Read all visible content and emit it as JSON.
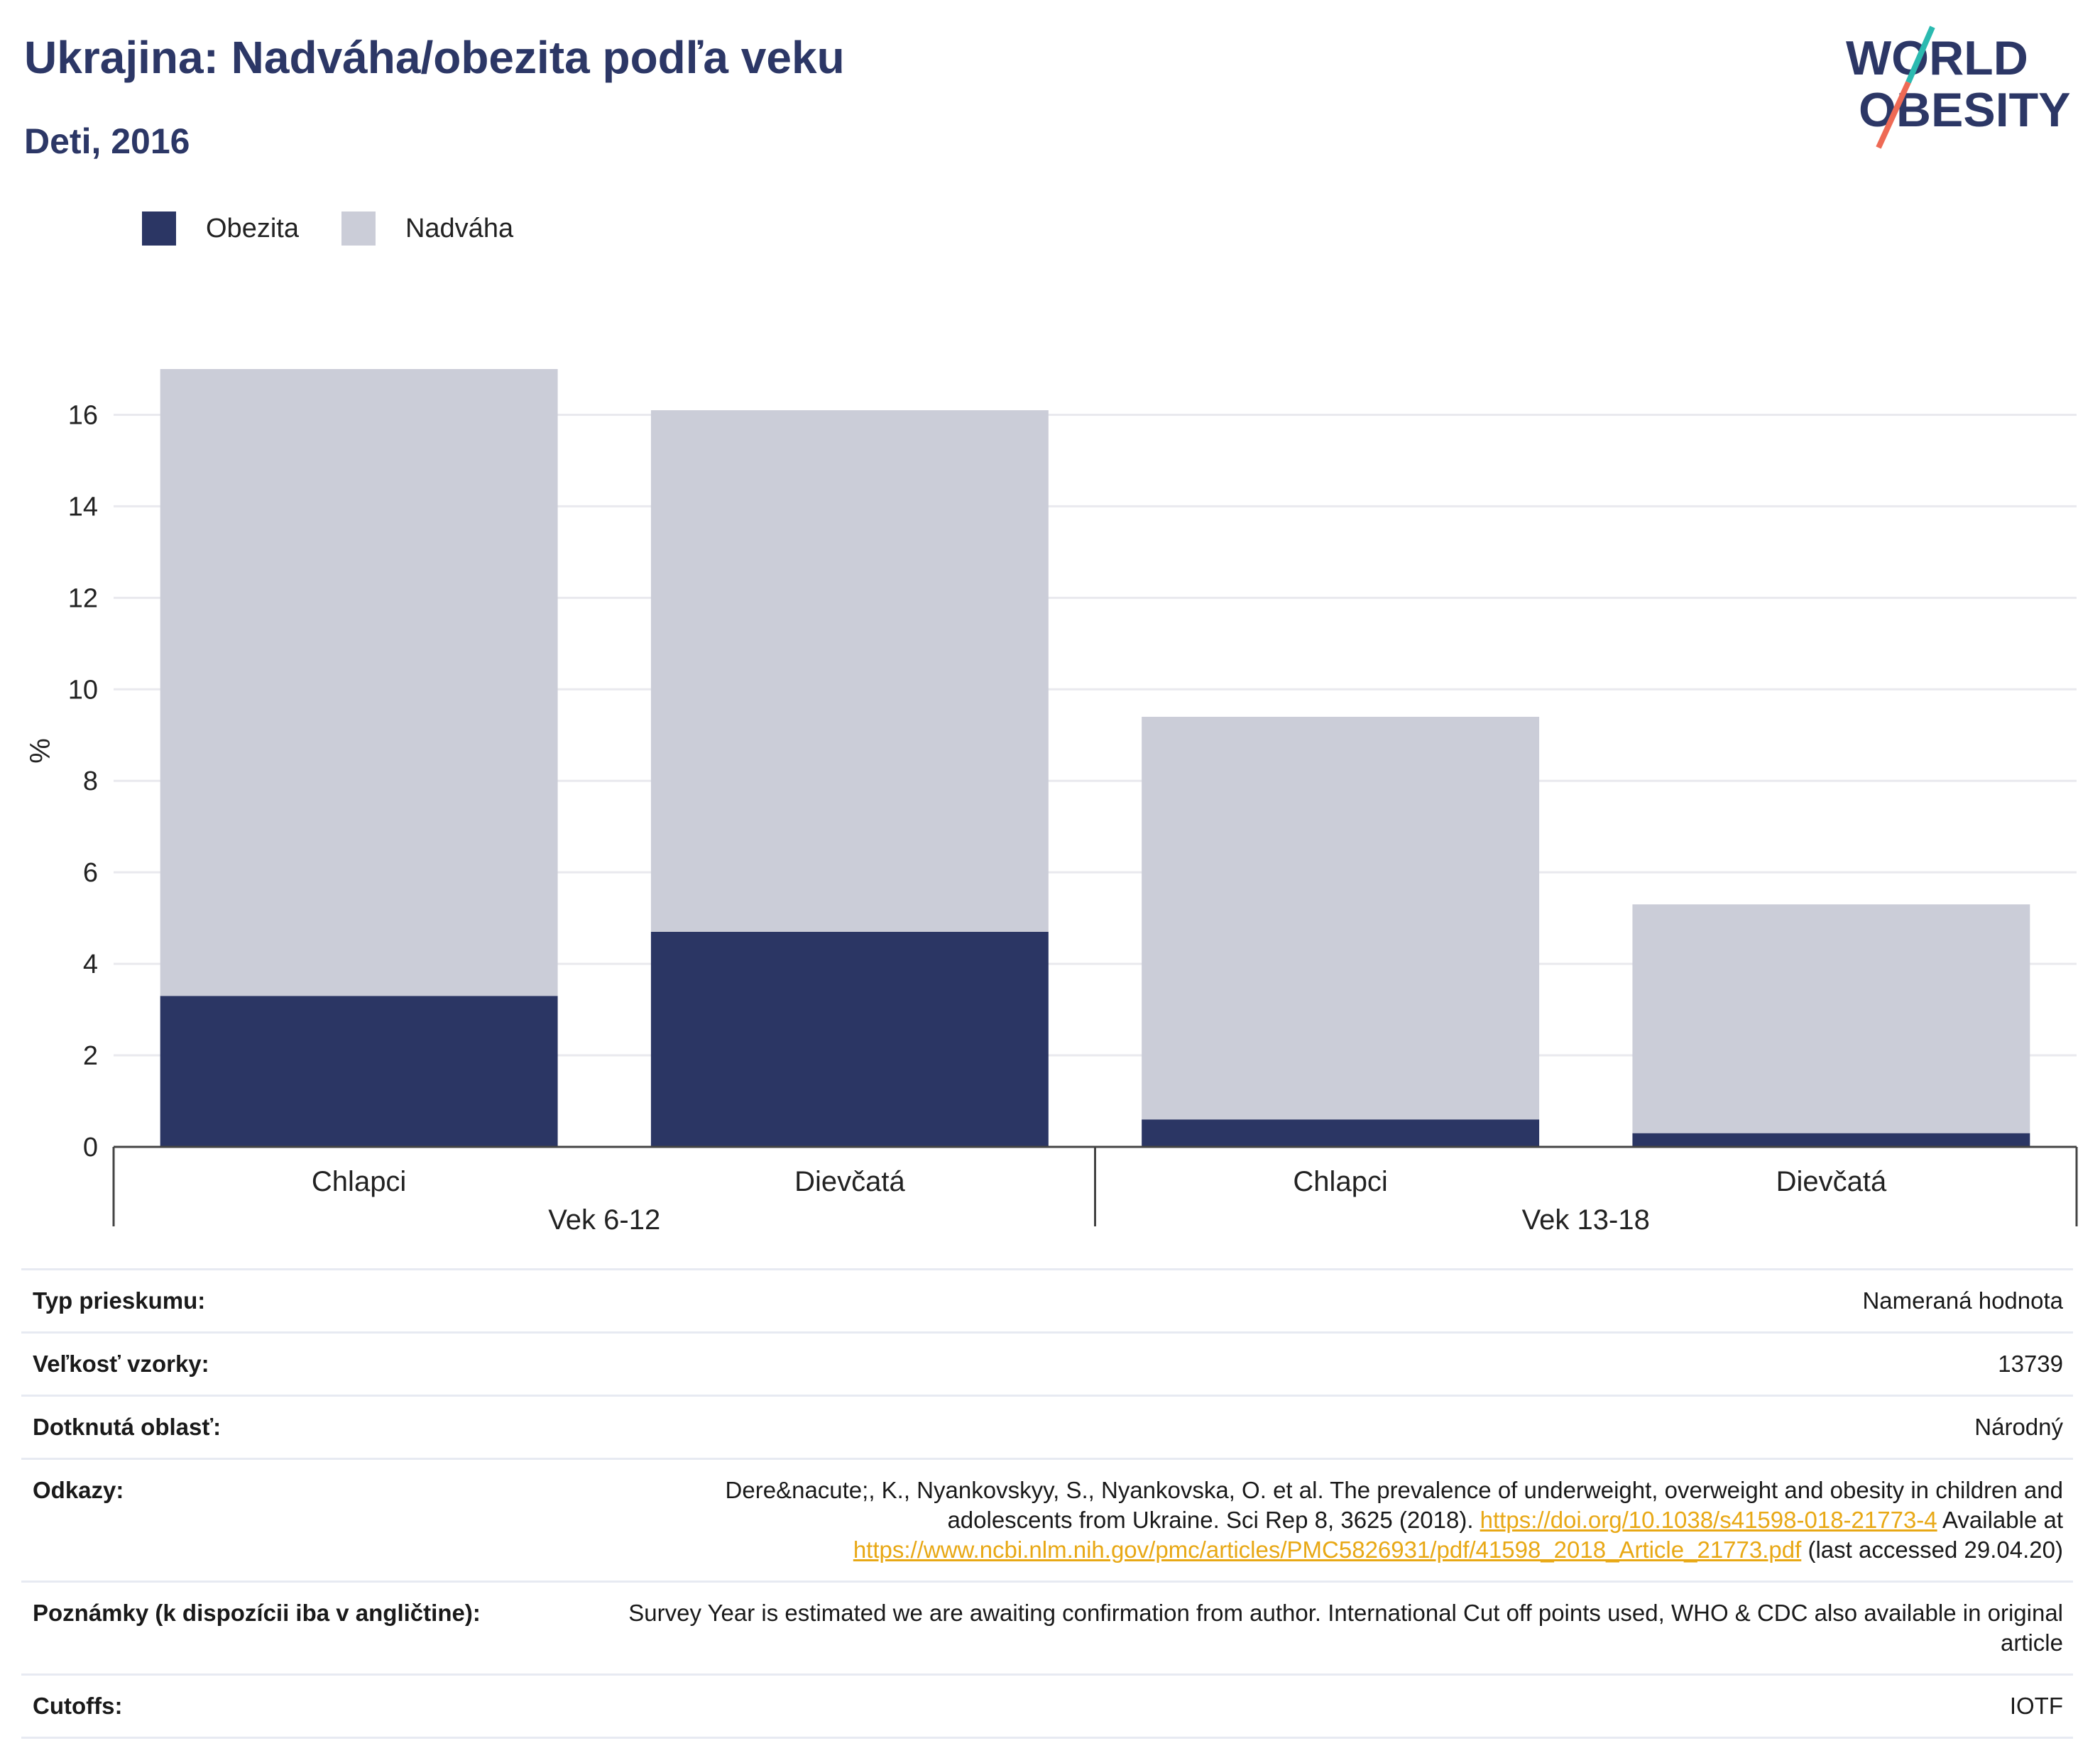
{
  "title": "Ukrajina: Nadváha/obezita podľa veku",
  "subtitle": "Deti, 2016",
  "logo": {
    "line1": "WORLD",
    "line2": "OBESITY"
  },
  "colors": {
    "obesity": "#2b3664",
    "overweight": "#cbcdd8",
    "title": "#2c3766",
    "link": "#e8a815",
    "logo_teal": "#2bbab0",
    "logo_coral": "#ee6a55"
  },
  "chart_data": {
    "type": "bar",
    "stacked": true,
    "groups": [
      {
        "label": "Vek 6-12",
        "categories": [
          "Chlapci",
          "Dievčatá"
        ]
      },
      {
        "label": "Vek 13-18",
        "categories": [
          "Chlapci",
          "Dievčatá"
        ]
      }
    ],
    "categories": [
      "Chlapci",
      "Dievčatá",
      "Chlapci",
      "Dievčatá"
    ],
    "series": [
      {
        "name": "Obezita",
        "values": [
          3.3,
          4.7,
          0.6,
          0.3
        ]
      },
      {
        "name": "Nadváha",
        "values": [
          13.7,
          11.4,
          8.8,
          5.0
        ]
      }
    ],
    "ylabel": "%",
    "ylim": [
      0,
      17
    ],
    "yticks": [
      0,
      2,
      4,
      6,
      8,
      10,
      12,
      14,
      16
    ],
    "grid": true,
    "legend_position": "top-left"
  },
  "info": [
    {
      "label": "Typ prieskumu:",
      "value": "Nameraná hodnota"
    },
    {
      "label": "Veľkosť vzorky:",
      "value": "13739"
    },
    {
      "label": "Dotknutá oblasť:",
      "value": "Národný"
    },
    {
      "label": "Odkazy:",
      "parts": {
        "text1": "Dere&nacute;, K., Nyankovskyy, S., Nyankovska, O. et al. The prevalence of underweight, overweight and obesity in children and adolescents from Ukraine. Sci Rep 8, 3625 (2018). ",
        "link1": "https://doi.org/10.1038/s41598-018-21773-4",
        "text2": " Available at ",
        "link2": "https://www.ncbi.nlm.nih.gov/pmc/articles/PMC5826931/pdf/41598_2018_Article_21773.pdf",
        "text3": " (last accessed 29.04.20)"
      }
    },
    {
      "label": "Poznámky (k dispozícii iba v angličtine):",
      "value": "Survey Year is estimated we are awaiting confirmation from author. International Cut off points used, WHO & CDC also available in original article"
    },
    {
      "label": "Cutoffs:",
      "value": "IOTF"
    }
  ]
}
